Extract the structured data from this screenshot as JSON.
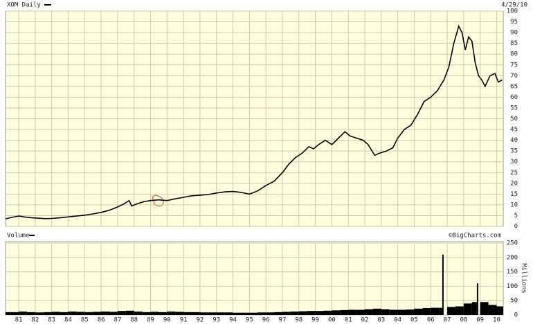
{
  "chart_data": [
    {
      "type": "line",
      "title": "XOM Daily",
      "date": "4/29/10",
      "color": "#000000",
      "grid": true,
      "x": [
        1980.2,
        1980.6,
        1981.0,
        1981.4,
        1981.8,
        1982.2,
        1982.6,
        1983.0,
        1983.5,
        1984.0,
        1984.5,
        1985.0,
        1985.5,
        1986.0,
        1986.5,
        1987.0,
        1987.4,
        1987.7,
        1987.85,
        1988.2,
        1988.6,
        1989.0,
        1989.5,
        1990.0,
        1990.5,
        1991.0,
        1991.5,
        1992.0,
        1992.5,
        1993.0,
        1993.5,
        1994.0,
        1994.5,
        1995.0,
        1995.5,
        1996.0,
        1996.5,
        1997.0,
        1997.4,
        1997.8,
        1998.2,
        1998.6,
        1998.9,
        1999.2,
        1999.6,
        2000.0,
        2000.4,
        2000.8,
        2001.1,
        2001.5,
        2001.9,
        2002.2,
        2002.6,
        2002.9,
        2003.3,
        2003.7,
        2004.0,
        2004.4,
        2004.8,
        2005.2,
        2005.6,
        2006.0,
        2006.4,
        2006.8,
        2007.1,
        2007.4,
        2007.7,
        2007.9,
        2008.1,
        2008.3,
        2008.5,
        2008.7,
        2008.9,
        2009.1,
        2009.3,
        2009.6,
        2009.9,
        2010.1,
        2010.33
      ],
      "values": [
        3.5,
        4.2,
        4.8,
        4.3,
        4.0,
        3.8,
        3.6,
        3.7,
        4.0,
        4.4,
        4.8,
        5.2,
        5.8,
        6.5,
        7.5,
        9.0,
        10.5,
        12.0,
        9.5,
        10.5,
        11.5,
        12.0,
        12.3,
        12.0,
        12.8,
        13.5,
        14.2,
        14.5,
        14.8,
        15.5,
        16.0,
        16.2,
        15.8,
        15.0,
        16.5,
        19.0,
        21.0,
        25.0,
        29.0,
        32.0,
        34.0,
        37.0,
        36.0,
        38.0,
        40.0,
        38.0,
        41.0,
        44.0,
        42.0,
        41.0,
        40.0,
        38.0,
        33.0,
        34.0,
        35.0,
        36.5,
        41.0,
        45.0,
        47.0,
        52.0,
        58.0,
        60.0,
        63.0,
        68.0,
        74.0,
        85.0,
        93.0,
        90.0,
        82.0,
        88.0,
        86.0,
        76.0,
        70.0,
        68.0,
        65.0,
        70.0,
        71.0,
        67.0,
        68.0
      ],
      "xlim": [
        1980.2,
        2010.4
      ],
      "ylim": [
        0,
        100
      ],
      "yticks": [
        0,
        5,
        10,
        15,
        20,
        25,
        30,
        35,
        40,
        45,
        50,
        55,
        60,
        65,
        70,
        75,
        80,
        85,
        90,
        95,
        100
      ]
    },
    {
      "type": "bar",
      "title": "Volume",
      "source": "©BigCharts.com",
      "ylabel": "Millions",
      "color": "#000000",
      "grid": true,
      "x": [
        1980.2,
        1980.5,
        1981.0,
        1981.5,
        1982.0,
        1982.5,
        1983.0,
        1983.5,
        1984.0,
        1984.5,
        1985.0,
        1985.5,
        1986.0,
        1986.5,
        1987.0,
        1987.5,
        1988.0,
        1988.5,
        1989.0,
        1989.5,
        1990.0,
        1990.5,
        1991.0,
        1991.5,
        1992.0,
        1992.5,
        1993.0,
        1993.5,
        1994.0,
        1994.5,
        1995.0,
        1995.5,
        1996.0,
        1996.5,
        1997.0,
        1997.5,
        1998.0,
        1998.5,
        1999.0,
        1999.5,
        2000.0,
        2000.5,
        2001.0,
        2001.5,
        2002.0,
        2002.5,
        2003.0,
        2003.5,
        2004.0,
        2004.5,
        2005.0,
        2005.5,
        2006.0,
        2006.5,
        2006.7,
        2007.0,
        2007.5,
        2008.0,
        2008.5,
        2008.8,
        2009.0,
        2009.5,
        2010.0
      ],
      "values": [
        10,
        10,
        12,
        10,
        9,
        10,
        11,
        10,
        12,
        11,
        10,
        11,
        12,
        11,
        14,
        15,
        12,
        10,
        11,
        10,
        12,
        11,
        10,
        10,
        9,
        9,
        9,
        9,
        8,
        8,
        8,
        9,
        9,
        10,
        11,
        12,
        13,
        14,
        14,
        15,
        16,
        17,
        18,
        18,
        20,
        22,
        20,
        18,
        18,
        19,
        22,
        24,
        25,
        25,
        210,
        28,
        30,
        40,
        45,
        110,
        45,
        35,
        30
      ],
      "xlim": [
        1980.2,
        2010.4
      ],
      "ylim": [
        0,
        250
      ],
      "yticks": [
        0,
        50,
        100,
        150,
        200,
        250
      ],
      "xticks": [
        {
          "value": 1981,
          "label": "81"
        },
        {
          "value": 1982,
          "label": "82"
        },
        {
          "value": 1983,
          "label": "83"
        },
        {
          "value": 1984,
          "label": "84"
        },
        {
          "value": 1985,
          "label": "85"
        },
        {
          "value": 1986,
          "label": "86"
        },
        {
          "value": 1987,
          "label": "87"
        },
        {
          "value": 1988,
          "label": "88"
        },
        {
          "value": 1989,
          "label": "89"
        },
        {
          "value": 1990,
          "label": "90"
        },
        {
          "value": 1991,
          "label": "91"
        },
        {
          "value": 1992,
          "label": "92"
        },
        {
          "value": 1993,
          "label": "93"
        },
        {
          "value": 1994,
          "label": "94"
        },
        {
          "value": 1995,
          "label": "95"
        },
        {
          "value": 1996,
          "label": "96"
        },
        {
          "value": 1997,
          "label": "97"
        },
        {
          "value": 1998,
          "label": "98"
        },
        {
          "value": 1999,
          "label": "99"
        },
        {
          "value": 2000,
          "label": "00"
        },
        {
          "value": 2001,
          "label": "01"
        },
        {
          "value": 2002,
          "label": "02"
        },
        {
          "value": 2003,
          "label": "03"
        },
        {
          "value": 2004,
          "label": "04"
        },
        {
          "value": 2005,
          "label": "05"
        },
        {
          "value": 2006,
          "label": "06"
        },
        {
          "value": 2007,
          "label": "07"
        },
        {
          "value": 2008,
          "label": "08"
        },
        {
          "value": 2009,
          "label": "09"
        },
        {
          "value": 2010,
          "label": "10"
        }
      ]
    }
  ]
}
